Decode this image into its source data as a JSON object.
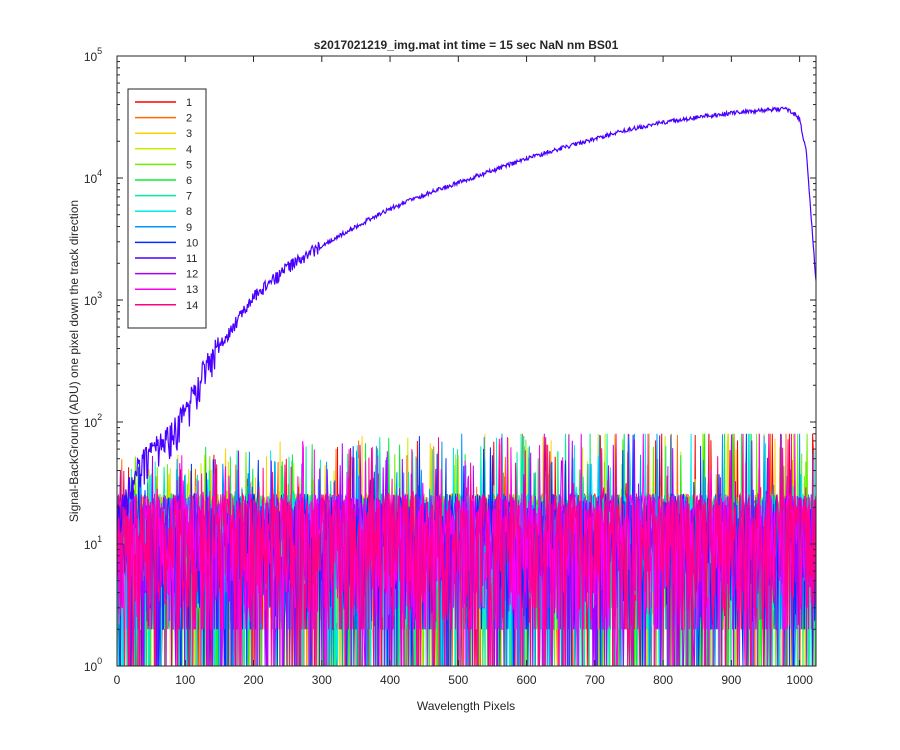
{
  "chart_data": {
    "type": "line",
    "title": "s2017021219_img.mat int time = 15 sec  NaN nm BS01",
    "xlabel": "Wavelength Pixels",
    "ylabel": "Signal-BackGround (ADU) one pixel down the track direction",
    "xlim": [
      0,
      1024
    ],
    "ylim": [
      1,
      100000
    ],
    "yscale": "log",
    "grid": false,
    "legend_position": "top-left",
    "x_ticks": [
      0,
      100,
      200,
      300,
      400,
      500,
      600,
      700,
      800,
      900,
      1000
    ],
    "x_tick_labels": [
      "0",
      "100",
      "200",
      "300",
      "400",
      "500",
      "600",
      "700",
      "800",
      "900",
      "1000"
    ],
    "y_ticks": [
      1,
      10,
      100,
      1000,
      10000,
      100000
    ],
    "y_tick_labels": [
      {
        "base": "10",
        "exp": "0"
      },
      {
        "base": "10",
        "exp": "1"
      },
      {
        "base": "10",
        "exp": "2"
      },
      {
        "base": "10",
        "exp": "3"
      },
      {
        "base": "10",
        "exp": "4"
      },
      {
        "base": "10",
        "exp": "5"
      }
    ],
    "signal_series_index": 10,
    "signal_envelope": {
      "x": [
        0,
        10,
        20,
        30,
        40,
        50,
        60,
        70,
        80,
        90,
        100,
        120,
        150,
        200,
        250,
        300,
        350,
        400,
        450,
        500,
        550,
        600,
        650,
        700,
        750,
        800,
        850,
        900,
        950,
        975,
        990,
        1000,
        1010,
        1024
      ],
      "y": [
        15,
        22,
        30,
        38,
        45,
        52,
        60,
        68,
        78,
        92,
        115,
        200,
        420,
        1050,
        1850,
        2800,
        4000,
        5600,
        7300,
        9200,
        11500,
        14500,
        17500,
        21000,
        25000,
        28500,
        31500,
        34000,
        36000,
        36800,
        35000,
        30000,
        16000,
        1400
      ]
    },
    "noise_level": {
      "median": 14,
      "spread": 12,
      "max": 80
    },
    "series": [
      {
        "name": "1",
        "color": "#ff0000"
      },
      {
        "name": "2",
        "color": "#ff6d00"
      },
      {
        "name": "3",
        "color": "#ffd000"
      },
      {
        "name": "4",
        "color": "#c4f000"
      },
      {
        "name": "5",
        "color": "#6cf000"
      },
      {
        "name": "6",
        "color": "#12e838"
      },
      {
        "name": "7",
        "color": "#00f0a0"
      },
      {
        "name": "8",
        "color": "#00eaea"
      },
      {
        "name": "9",
        "color": "#0096ff"
      },
      {
        "name": "10",
        "color": "#0030ff"
      },
      {
        "name": "11",
        "color": "#4a00ff"
      },
      {
        "name": "12",
        "color": "#a800ff"
      },
      {
        "name": "13",
        "color": "#ff00ee"
      },
      {
        "name": "14",
        "color": "#ff0088"
      }
    ]
  }
}
